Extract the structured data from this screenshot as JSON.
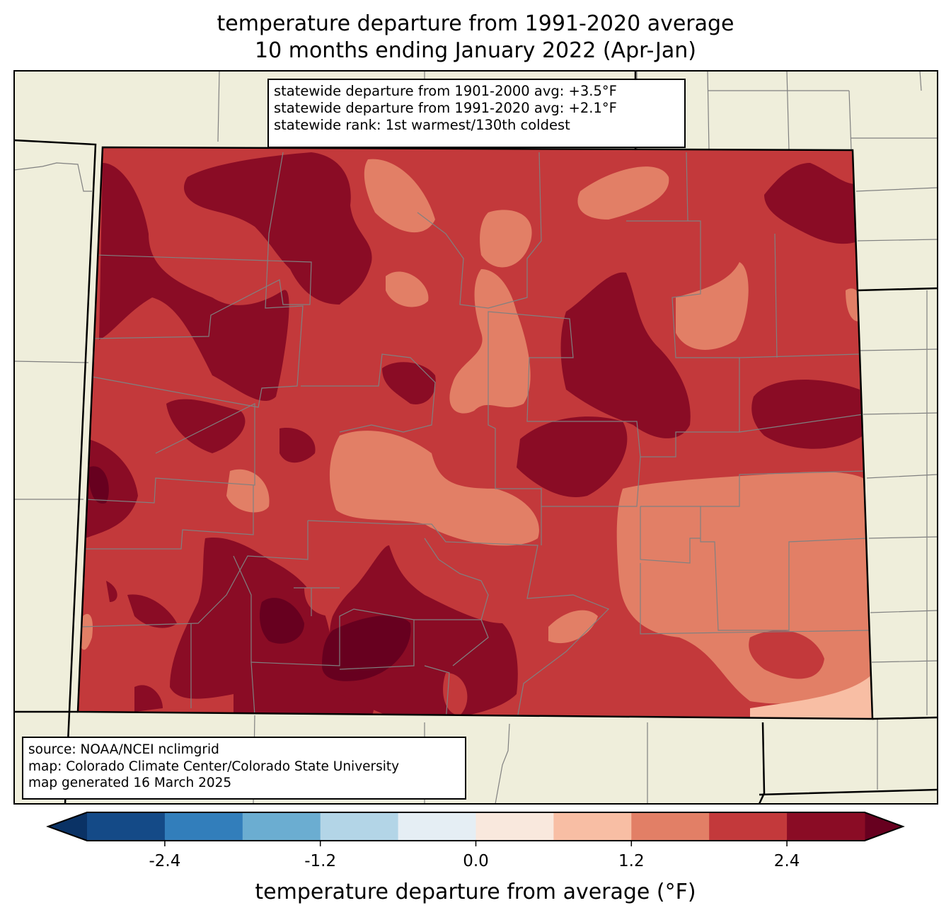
{
  "title": {
    "line1": "temperature departure from 1991-2020 average",
    "line2": "10 months ending January 2022 (Apr-Jan)"
  },
  "infobox": {
    "line1": "statewide departure from 1901-2000 avg: +3.5°F",
    "line2": "statewide departure from 1991-2020 avg: +2.1°F",
    "line3": "statewide rank: 1st warmest/130th coldest"
  },
  "sourcebox": {
    "line1": "source: NOAA/NCEI nclimgrid",
    "line2": "map: Colorado Climate Center/Colorado State University",
    "line3": "map generated 16 March 2025"
  },
  "colorbar": {
    "label": "temperature departure from average (°F)",
    "min": -3.0,
    "max": 3.0,
    "bin_edges": [
      -3.0,
      -2.4,
      -1.8,
      -1.2,
      -0.6,
      0.0,
      0.6,
      1.2,
      1.8,
      2.4,
      3.0
    ],
    "bin_colors": [
      "#144a87",
      "#327ebb",
      "#6badd1",
      "#b3d5e7",
      "#e5eef4",
      "#f9e8dd",
      "#f8bea4",
      "#e27f66",
      "#c3393b",
      "#8a0c25"
    ],
    "under_color": "#0a3265",
    "over_color": "#67001f",
    "ticks": [
      "-2.4",
      "-1.2",
      "0.0",
      "1.2",
      "2.4"
    ],
    "tick_values": [
      -2.4,
      -1.2,
      0.0,
      1.2,
      2.4
    ]
  },
  "colors": {
    "land": "#efeedb",
    "state_border": "#000000",
    "county_line": "#808080"
  }
}
